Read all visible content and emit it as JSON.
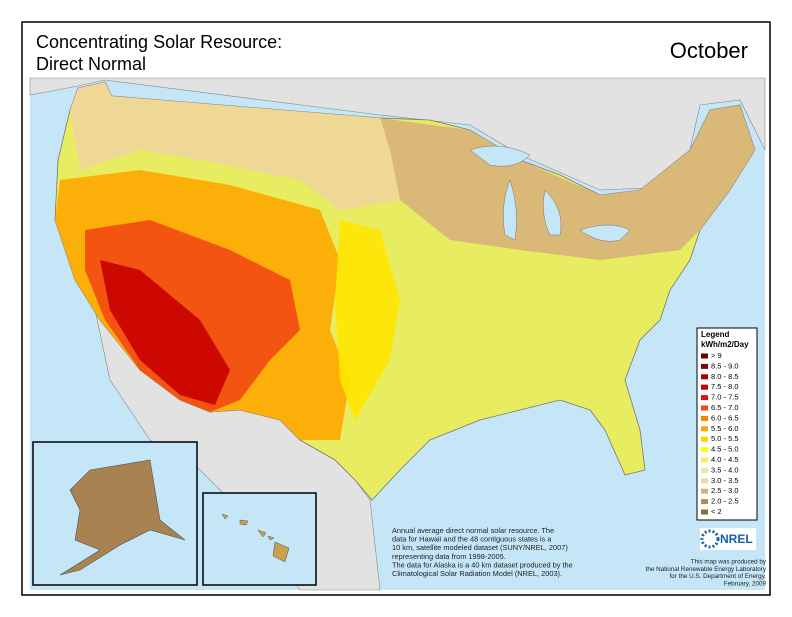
{
  "header": {
    "title_lines": [
      "Concentrating Solar Resource:",
      "Direct Normal"
    ],
    "month": "October"
  },
  "legend": {
    "title": "Legend",
    "unit": "kWh/m2/Day",
    "items": [
      {
        "label": "> 9",
        "color": "#6e0000"
      },
      {
        "label": "8.5 - 9.0",
        "color": "#8b0000"
      },
      {
        "label": "8.0 - 8.5",
        "color": "#a80000"
      },
      {
        "label": "7.5 - 8.0",
        "color": "#c80000"
      },
      {
        "label": "7.0 - 7.5",
        "color": "#e41010"
      },
      {
        "label": "6.5 - 7.0",
        "color": "#f24a14"
      },
      {
        "label": "6.0 - 6.5",
        "color": "#f98000"
      },
      {
        "label": "5.5 - 6.0",
        "color": "#ffa800"
      },
      {
        "label": "5.0 - 5.5",
        "color": "#ffd200"
      },
      {
        "label": "4.5 - 5.0",
        "color": "#ffff00"
      },
      {
        "label": "4.0 - 4.5",
        "color": "#eef06a"
      },
      {
        "label": "3.5 - 4.0",
        "color": "#ece8a8"
      },
      {
        "label": "3.0 - 3.5",
        "color": "#f0d6a8"
      },
      {
        "label": "2.5 - 3.0",
        "color": "#d9b274"
      },
      {
        "label": "2.0 - 2.5",
        "color": "#b58b52"
      },
      {
        "label": "< 2",
        "color": "#8a6a3e"
      }
    ]
  },
  "notes": [
    "Annual average direct normal solar resource.  The",
    "data for Hawaii and the 48 contiguous states is a",
    "10 km, satellite modeled dataset (SUNY/NREL, 2007)",
    "representing data from 1998-2005.",
    "The data for Alaska is a 40 km dataset produced by the",
    "Climatological Solar Radiation Model (NREL, 2003)."
  ],
  "logo": "NREL",
  "credit": [
    "This map was produced by",
    "the National Renewable Energy Laboratory",
    "for the U.S. Department of Energy.",
    "February, 2009"
  ]
}
